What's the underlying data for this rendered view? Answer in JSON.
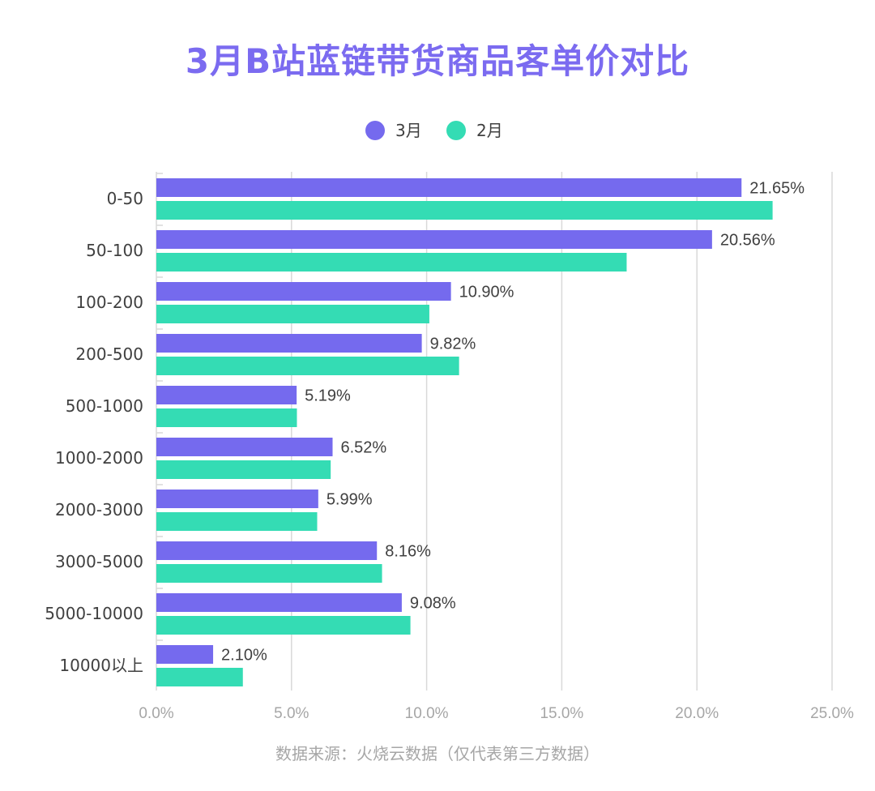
{
  "title": "3月B站蓝链带货商品客单价对比",
  "source": "数据来源：火烧云数据（仅代表第三方数据）",
  "colors": {
    "march": "#756AEE",
    "february": "#34DCB4",
    "title": "#7B6BF0",
    "grid": "#d9d9d9",
    "axis_text": "#a6a6a6",
    "category_text": "#404040"
  },
  "chart_data": {
    "type": "bar",
    "orientation": "horizontal",
    "title": "3月B站蓝链带货商品客单价对比",
    "categories": [
      "0-50",
      "50-100",
      "100-200",
      "200-500",
      "500-1000",
      "1000-2000",
      "2000-3000",
      "3000-5000",
      "5000-10000",
      "10000以上"
    ],
    "series": [
      {
        "name": "3月",
        "values": [
          21.65,
          20.56,
          10.9,
          9.82,
          5.19,
          6.52,
          5.99,
          8.16,
          9.08,
          2.1
        ],
        "labels": [
          "21.65%",
          "20.56%",
          "10.90%",
          "9.82%",
          "5.19%",
          "6.52%",
          "5.99%",
          "8.16%",
          "9.08%",
          "2.10%"
        ]
      },
      {
        "name": "2月",
        "values": [
          22.8,
          17.4,
          10.1,
          11.2,
          5.2,
          6.45,
          5.95,
          8.35,
          9.4,
          3.2
        ]
      }
    ],
    "xlim": [
      0,
      25
    ],
    "xticks": [
      0,
      5,
      10,
      15,
      20,
      25
    ],
    "xtick_labels": [
      "0.0%",
      "5.0%",
      "10.0%",
      "15.0%",
      "20.0%",
      "25.0%"
    ],
    "legend_position": "top-center",
    "grid": true
  }
}
